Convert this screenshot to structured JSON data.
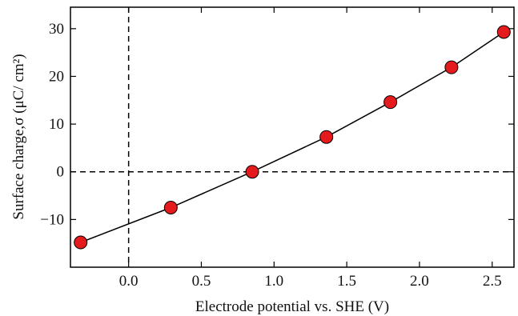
{
  "chart_data": {
    "type": "scatter",
    "title": "",
    "xlabel": "Electrode potential vs. SHE (V)",
    "ylabel": "Surface charge,σ (μC/ cm²)",
    "xlim": [
      -0.4,
      2.65
    ],
    "ylim": [
      -20,
      34.5
    ],
    "x_ticks": [
      0.0,
      0.5,
      1.0,
      1.5,
      2.0,
      2.5
    ],
    "x_tick_labels": [
      "0.0",
      "0.5",
      "1.0",
      "1.5",
      "2.0",
      "2.5"
    ],
    "y_ticks": [
      -10,
      0,
      10,
      20,
      30
    ],
    "y_tick_labels": [
      "−10",
      "0",
      "10",
      "20",
      "30"
    ],
    "grid": false,
    "reference_lines": [
      {
        "orientation": "vertical",
        "value": 0.0,
        "style": "dashed"
      },
      {
        "orientation": "horizontal",
        "value": 0,
        "style": "dashed"
      }
    ],
    "series": [
      {
        "line_color": "#000000",
        "marker_color": "#e41a1c",
        "marker_edge": "#000000",
        "x": [
          -0.33,
          0.29,
          0.85,
          1.36,
          1.8,
          2.22,
          2.58
        ],
        "y": [
          -14.8,
          -7.5,
          0.0,
          7.3,
          14.6,
          21.9,
          29.3
        ]
      }
    ]
  }
}
